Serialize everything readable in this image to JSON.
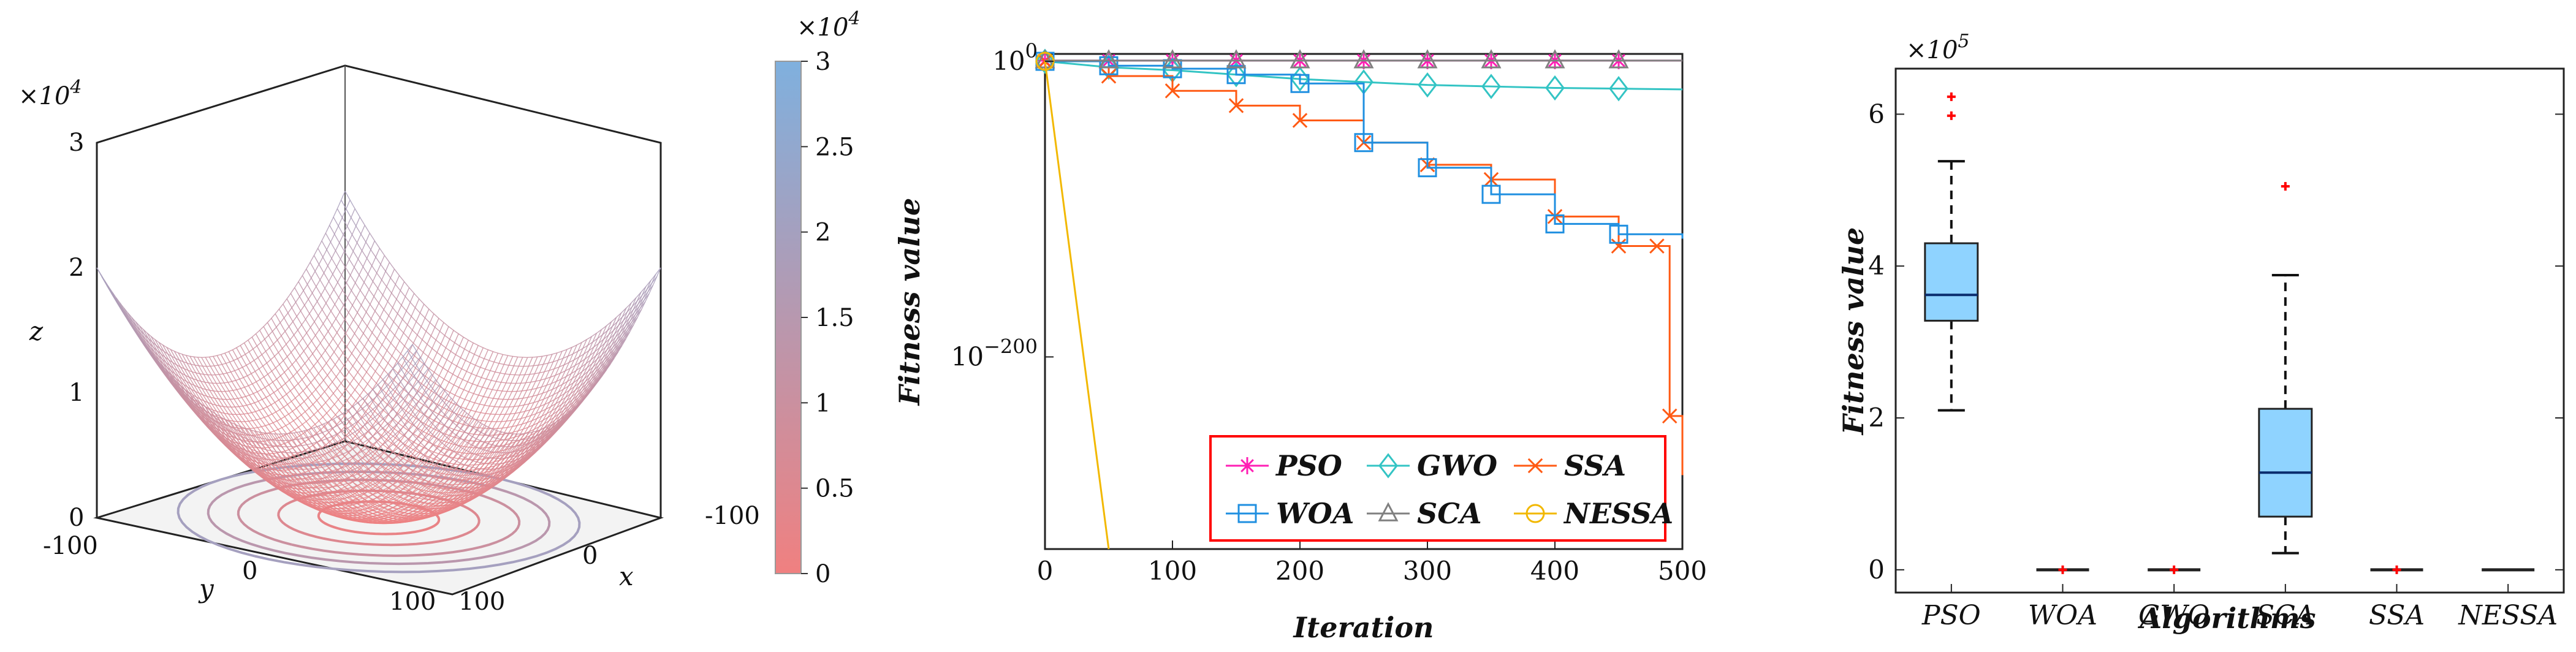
{
  "chart_data": [
    {
      "type": "surface3d",
      "title": "",
      "function": "z = x^2 + y^2",
      "xlabel": "x",
      "ylabel": "y",
      "zlabel": "z",
      "x_range": [
        -100,
        100
      ],
      "y_range": [
        -100,
        100
      ],
      "z_range": [
        0,
        3
      ],
      "x_ticks": [
        "-100",
        "0",
        "100"
      ],
      "y_ticks": [
        "-100",
        "0",
        "100"
      ],
      "z_ticks": [
        "0",
        "1",
        "2",
        "3"
      ],
      "z_multiplier": "×10",
      "z_multiplier_exp": "4",
      "colorbar": {
        "ticks": [
          "0",
          "0.5",
          "1",
          "1.5",
          "2",
          "2.5",
          "3"
        ],
        "multiplier": "×10",
        "multiplier_exp": "4",
        "color_low": "#f08080",
        "color_high": "#7fb0de"
      }
    },
    {
      "type": "line",
      "title": "",
      "xlabel": "Iteration",
      "ylabel": "Fitness value",
      "y_scale": "log10",
      "xlim": [
        0,
        500
      ],
      "ylim_log10_exponent": [
        -330,
        5
      ],
      "x_ticks": [
        "0",
        "100",
        "200",
        "300",
        "400",
        "500"
      ],
      "y_ticks": [
        {
          "base": "10",
          "exp": "0",
          "value_exponent": 0
        },
        {
          "base": "10",
          "exp": "−200",
          "value_exponent": -200
        }
      ],
      "series": [
        {
          "name": "PSO",
          "color": "#ff1fb4",
          "marker": "asterisk",
          "x": [
            0,
            50,
            100,
            150,
            200,
            250,
            300,
            350,
            400,
            450,
            500
          ],
          "log10_y": [
            0.5,
            0.5,
            0.5,
            0.5,
            0.5,
            0.5,
            0.5,
            0.5,
            0.5,
            0.5,
            0.5
          ]
        },
        {
          "name": "GWO",
          "color": "#33c4c4",
          "marker": "diamond",
          "x": [
            0,
            50,
            100,
            150,
            200,
            250,
            300,
            350,
            400,
            450,
            500
          ],
          "log10_y": [
            0,
            -4,
            -6,
            -9,
            -12,
            -14,
            -16,
            -17,
            -18,
            -18.5,
            -19
          ]
        },
        {
          "name": "SSA",
          "color": "#ff5a14",
          "marker": "x",
          "x": [
            0,
            50,
            100,
            150,
            200,
            250,
            300,
            350,
            400,
            450,
            480,
            490,
            500
          ],
          "log10_y": [
            0,
            -10,
            -20,
            -30,
            -40,
            -55,
            -70,
            -80,
            -105,
            -125,
            -125,
            -240,
            -280
          ]
        },
        {
          "name": "WOA",
          "color": "#1f8fe0",
          "marker": "square",
          "x": [
            0,
            50,
            100,
            150,
            200,
            250,
            300,
            350,
            400,
            450,
            500
          ],
          "log10_y": [
            0,
            -3,
            -5,
            -9,
            -15,
            -55,
            -72,
            -90,
            -110,
            -117,
            -120
          ]
        },
        {
          "name": "SCA",
          "color": "#808080",
          "marker": "triangle",
          "x": [
            0,
            50,
            100,
            150,
            200,
            250,
            300,
            350,
            400,
            450,
            500
          ],
          "log10_y": [
            0.5,
            0.5,
            0.5,
            0.5,
            0.5,
            0.5,
            0.5,
            0.5,
            0.5,
            0.5,
            0.5
          ]
        },
        {
          "name": "NESSA",
          "color": "#f2b800",
          "marker": "circle",
          "x": [
            0,
            50
          ],
          "log10_y": [
            0,
            -330
          ]
        }
      ],
      "legend": [
        "PSO",
        "GWO",
        "SSA",
        "WOA",
        "SCA",
        "NESSA"
      ],
      "legend_border_color": "#ff0000"
    },
    {
      "type": "boxplot",
      "title": "",
      "xlabel": "Algorithms",
      "ylabel": "Fitness value",
      "y_multiplier": "×10",
      "y_multiplier_exp": "5",
      "ylim": [
        -0.3,
        6.6
      ],
      "y_ticks": [
        "0",
        "2",
        "4",
        "6"
      ],
      "categories": [
        "PSO",
        "WOA",
        "GWO",
        "SCA",
        "SSA",
        "NESSA"
      ],
      "box_color": "#8fd3ff",
      "outlier_color": "#ff0000",
      "boxes": [
        {
          "name": "PSO",
          "whisker_low": 2.1,
          "q1": 3.28,
          "median": 3.62,
          "q3": 4.3,
          "whisker_high": 5.38,
          "outliers": [
            6.23,
            5.98
          ]
        },
        {
          "name": "WOA",
          "whisker_low": 0,
          "q1": 0,
          "median": 0,
          "q3": 0,
          "whisker_high": 0,
          "outliers": [
            0
          ]
        },
        {
          "name": "GWO",
          "whisker_low": 0,
          "q1": 0,
          "median": 0,
          "q3": 0,
          "whisker_high": 0,
          "outliers": [
            0
          ]
        },
        {
          "name": "SCA",
          "whisker_low": 0.22,
          "q1": 0.7,
          "median": 1.28,
          "q3": 2.12,
          "whisker_high": 3.88,
          "outliers": [
            5.05
          ]
        },
        {
          "name": "SSA",
          "whisker_low": 0,
          "q1": 0,
          "median": 0,
          "q3": 0,
          "whisker_high": 0,
          "outliers": [
            0
          ]
        },
        {
          "name": "NESSA",
          "whisker_low": 0,
          "q1": 0,
          "median": 0,
          "q3": 0,
          "whisker_high": 0,
          "outliers": []
        }
      ]
    }
  ]
}
